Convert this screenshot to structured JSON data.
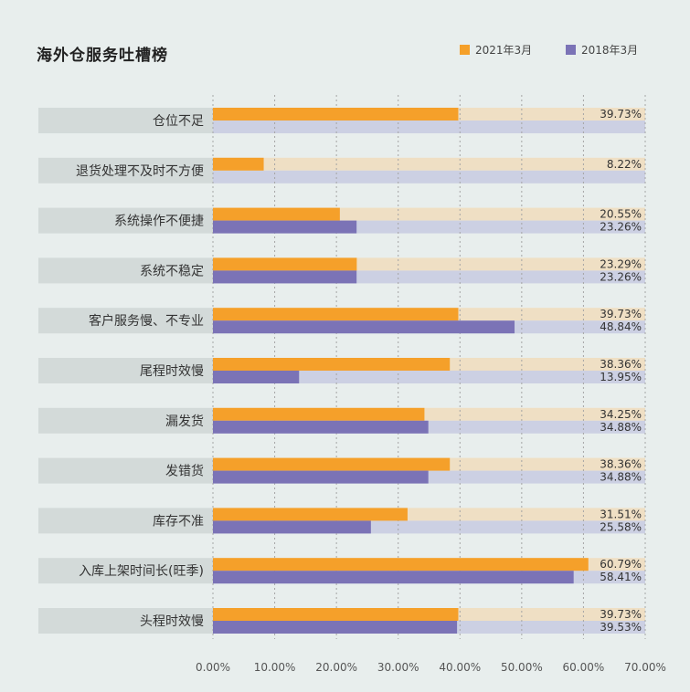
{
  "title": "海外仓服务吐槽榜",
  "colors": {
    "series_2021": "#f5a02a",
    "series_2018": "#7b73b6",
    "track_2021": "#efdfc4",
    "track_2018": "#ccd0e3",
    "label_band": "#d3dad9",
    "grid": "#a5a5a5"
  },
  "legend": [
    {
      "name": "2021年3月",
      "color": "#f5a02a"
    },
    {
      "name": "2018年3月",
      "color": "#7b73b6"
    }
  ],
  "chart_data": {
    "type": "bar",
    "orientation": "horizontal",
    "title": "海外仓服务吐槽榜",
    "categories": [
      "仓位不足",
      "退货处理不及时不方便",
      "系统操作不便捷",
      "系统不稳定",
      "客户服务慢、不专业",
      "尾程时效慢",
      "漏发货",
      "发错货",
      "库存不准",
      "入库上架时间长(旺季)",
      "头程时效慢"
    ],
    "series": [
      {
        "name": "2021年3月",
        "values": [
          39.73,
          8.22,
          20.55,
          23.29,
          39.73,
          38.36,
          34.25,
          38.36,
          31.51,
          60.79,
          39.73
        ],
        "labels": [
          "39.73%",
          "8.22%",
          "20.55%",
          "23.29%",
          "39.73%",
          "38.36%",
          "34.25%",
          "38.36%",
          "31.51%",
          "60.79%",
          "39.73%"
        ]
      },
      {
        "name": "2018年3月",
        "values": [
          null,
          null,
          23.26,
          23.26,
          48.84,
          13.95,
          34.88,
          34.88,
          25.58,
          58.41,
          39.53
        ],
        "labels": [
          null,
          null,
          "23.26%",
          "23.26%",
          "48.84%",
          "13.95%",
          "34.88%",
          "34.88%",
          "25.58%",
          "58.41%",
          "39.53%"
        ]
      }
    ],
    "xlim": [
      0,
      70
    ],
    "xticks": [
      "0.00%",
      "10.00%",
      "20.00%",
      "30.00%",
      "40.00%",
      "50.00%",
      "60.00%",
      "70.00%"
    ],
    "grid": true,
    "legend_position": "top-right"
  }
}
